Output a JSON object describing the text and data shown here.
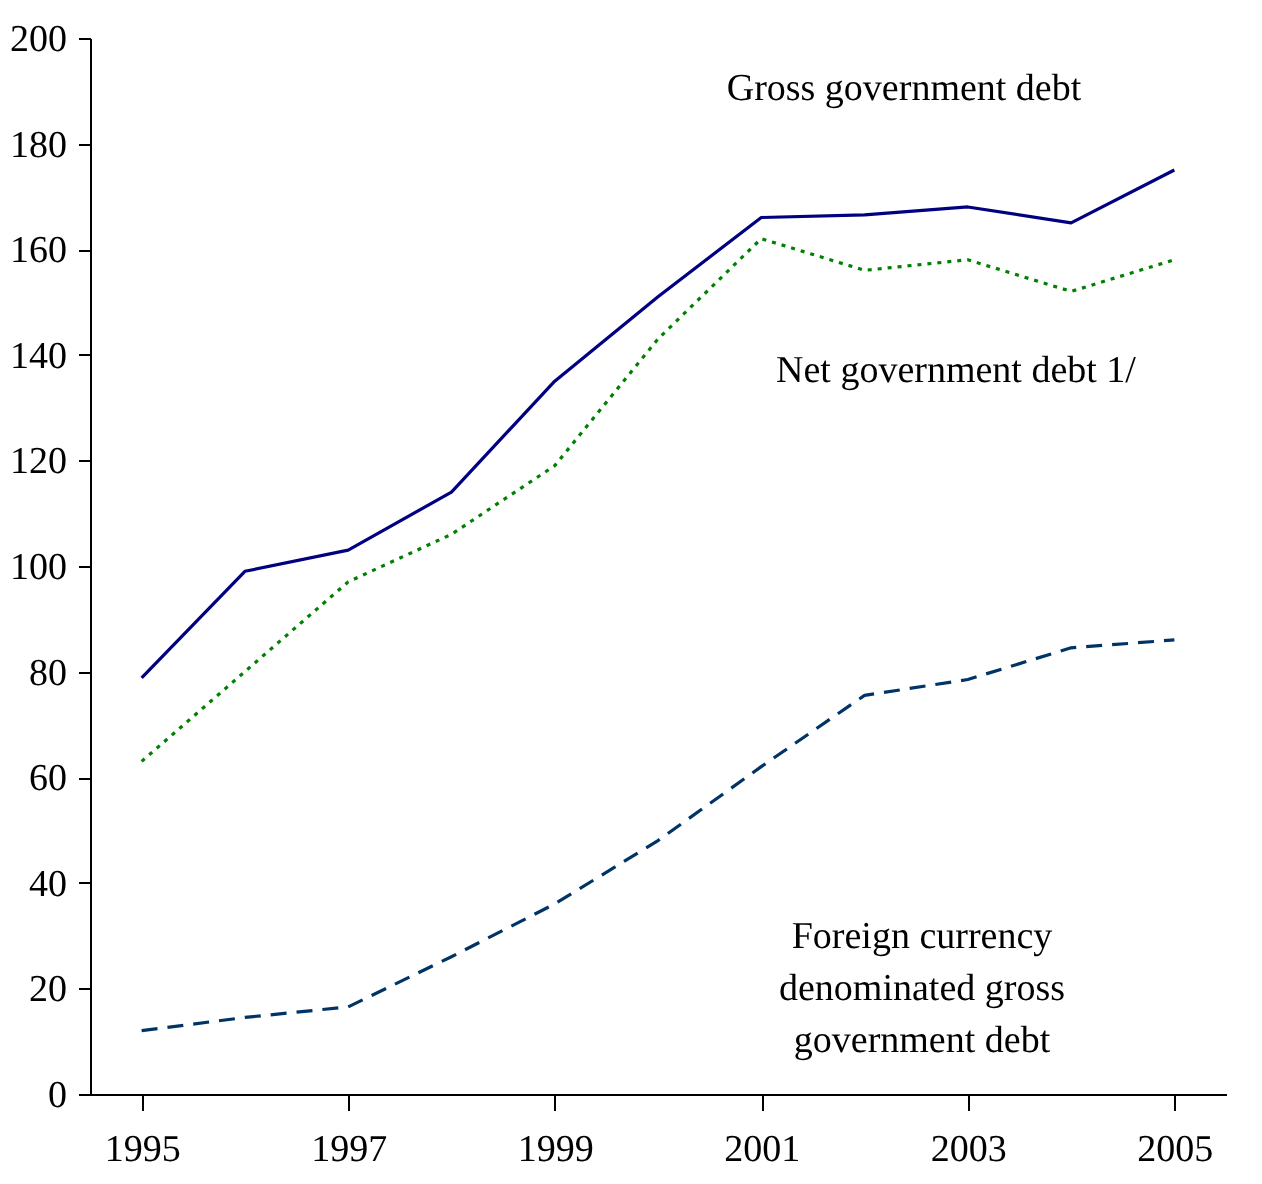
{
  "chart_data": {
    "type": "line",
    "x": [
      1995,
      1996,
      1997,
      1998,
      1999,
      2000,
      2001,
      2002,
      2003,
      2004,
      2005
    ],
    "series": [
      {
        "color": "#000080",
        "line_style": "solid",
        "values": [
          78.8,
          99,
          103,
          114,
          135,
          151,
          166,
          166.5,
          168,
          165,
          175
        ]
      },
      {
        "color": "#008000",
        "line_style": "dotted",
        "values": [
          63,
          80,
          97,
          106,
          119,
          143,
          162,
          156,
          158,
          152,
          158
        ]
      },
      {
        "color": "#003366",
        "line_style": "dashed",
        "values": [
          12,
          14.5,
          16.5,
          26,
          36,
          48,
          62,
          75.5,
          78.5,
          84.5,
          86
        ]
      }
    ],
    "xlim": [
      1994.5,
      2005.5
    ],
    "xticks": [
      1995,
      1997,
      1999,
      2001,
      2003,
      2005
    ],
    "ylim": [
      0,
      200
    ],
    "yticks": [
      0,
      20,
      40,
      60,
      80,
      100,
      120,
      140,
      160,
      180,
      200
    ],
    "grid": false,
    "marker": "none",
    "annotations": [
      "Gross government debt",
      "Net government debt 1/",
      "Foreign currency\ndenominated gross\ngovernment debt"
    ]
  }
}
